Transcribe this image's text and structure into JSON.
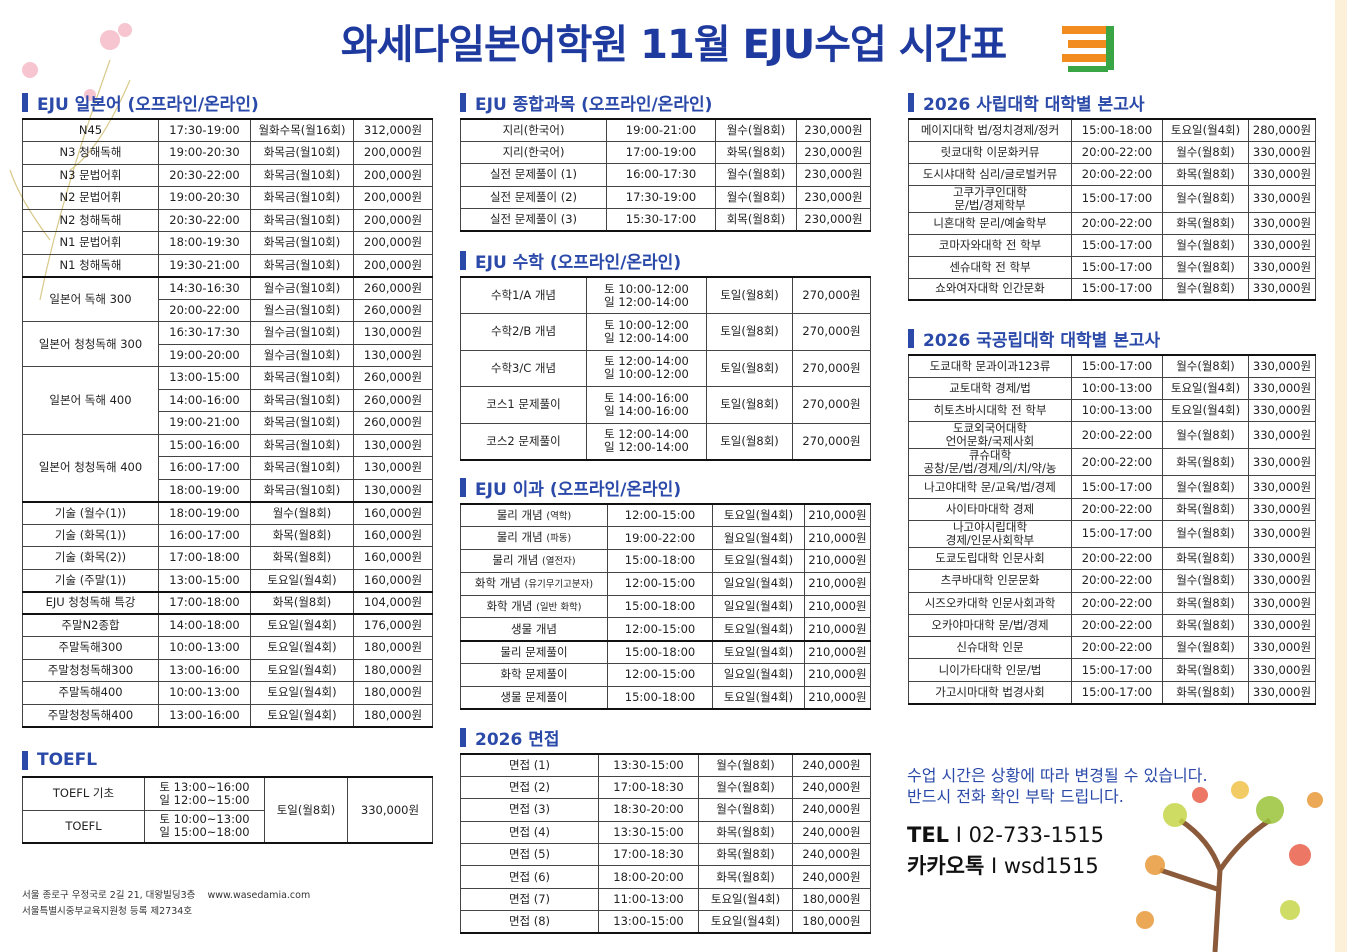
{
  "title": "와세다일본어학원 11월 EJU수업 시간표",
  "colors": {
    "brand_blue": "#2a49a8",
    "title_blue": "#1f3a9e",
    "logo_orange": "#f28c1e",
    "logo_green": "#3aa544"
  },
  "left": {
    "japanese": {
      "heading": "EJU 일본어 (오프라인/온라인)",
      "blocks": [
        [
          {
            "name": "N45",
            "slots": [
              {
                "time": "17:30-19:00",
                "days": "월화수목(월16회)",
                "price": "312,000원"
              }
            ]
          },
          {
            "name": "N3 청해독해",
            "slots": [
              {
                "time": "19:00-20:30",
                "days": "화목금(월10회)",
                "price": "200,000원"
              }
            ]
          },
          {
            "name": "N3 문법어휘",
            "slots": [
              {
                "time": "20:30-22:00",
                "days": "화목금(월10회)",
                "price": "200,000원"
              }
            ]
          },
          {
            "name": "N2 문법어휘",
            "slots": [
              {
                "time": "19:00-20:30",
                "days": "화목금(월10회)",
                "price": "200,000원"
              }
            ]
          },
          {
            "name": "N2 청해독해",
            "slots": [
              {
                "time": "20:30-22:00",
                "days": "화목금(월10회)",
                "price": "200,000원"
              }
            ]
          },
          {
            "name": "N1 문법어휘",
            "slots": [
              {
                "time": "18:00-19:30",
                "days": "화목금(월10회)",
                "price": "200,000원"
              }
            ]
          },
          {
            "name": "N1 청해독해",
            "slots": [
              {
                "time": "19:30-21:00",
                "days": "화목금(월10회)",
                "price": "200,000원"
              }
            ]
          }
        ],
        [
          {
            "name": "일본어 독해 300",
            "slots": [
              {
                "time": "14:30-16:30",
                "days": "월수금(월10회)",
                "price": "260,000원"
              },
              {
                "time": "20:00-22:00",
                "days": "월스금(월10회)",
                "price": "260,000원"
              }
            ]
          },
          {
            "name": "일본어 청청독해 300",
            "slots": [
              {
                "time": "16:30-17:30",
                "days": "월수금(월10회)",
                "price": "130,000원"
              },
              {
                "time": "19:00-20:00",
                "days": "월수금(월10회)",
                "price": "130,000원"
              }
            ]
          },
          {
            "name": "일본어 독해 400",
            "slots": [
              {
                "time": "13:00-15:00",
                "days": "화목금(월10회)",
                "price": "260,000원"
              },
              {
                "time": "14:00-16:00",
                "days": "화목금(월10회)",
                "price": "260,000원"
              },
              {
                "time": "19:00-21:00",
                "days": "화목금(월10회)",
                "price": "260,000원"
              }
            ]
          },
          {
            "name": "일본어 청청독해 400",
            "slots": [
              {
                "time": "15:00-16:00",
                "days": "화목금(월10회)",
                "price": "130,000원"
              },
              {
                "time": "16:00-17:00",
                "days": "화목금(월10회)",
                "price": "130,000원"
              },
              {
                "time": "18:00-19:00",
                "days": "화목금(월10회)",
                "price": "130,000원"
              }
            ]
          }
        ],
        [
          {
            "name": "기술 (월수(1))",
            "slots": [
              {
                "time": "18:00-19:00",
                "days": "월수(월8회)",
                "price": "160,000원"
              }
            ]
          },
          {
            "name": "기술 (화목(1))",
            "slots": [
              {
                "time": "16:00-17:00",
                "days": "화목(월8회)",
                "price": "160,000원"
              }
            ]
          },
          {
            "name": "기술 (화목(2))",
            "slots": [
              {
                "time": "17:00-18:00",
                "days": "화목(월8회)",
                "price": "160,000원"
              }
            ]
          },
          {
            "name": "기술 (주말(1))",
            "slots": [
              {
                "time": "13:00-15:00",
                "days": "토요일(월4회)",
                "price": "160,000원"
              }
            ]
          }
        ],
        [
          {
            "name": "EJU 청청독해 특강",
            "slots": [
              {
                "time": "17:00-18:00",
                "days": "화목(월8회)",
                "price": "104,000원"
              }
            ]
          }
        ],
        [
          {
            "name": "주말N2종합",
            "slots": [
              {
                "time": "14:00-18:00",
                "days": "토요일(월4회)",
                "price": "176,000원"
              }
            ]
          },
          {
            "name": "주말독해300",
            "slots": [
              {
                "time": "10:00-13:00",
                "days": "토요일(월4회)",
                "price": "180,000원"
              }
            ]
          },
          {
            "name": "주말청청독해300",
            "slots": [
              {
                "time": "13:00-16:00",
                "days": "토요일(월4회)",
                "price": "180,000원"
              }
            ]
          },
          {
            "name": "주말독해400",
            "slots": [
              {
                "time": "10:00-13:00",
                "days": "토요일(월4회)",
                "price": "180,000원"
              }
            ]
          },
          {
            "name": "주말청청독해400",
            "slots": [
              {
                "time": "13:00-16:00",
                "days": "토요일(월4회)",
                "price": "180,000원"
              }
            ]
          }
        ]
      ]
    },
    "toefl": {
      "heading": "TOEFL",
      "rows": [
        {
          "name": "TOEFL 기초",
          "time": "토 13:00~16:00\n일 12:00~15:00"
        },
        {
          "name": "TOEFL",
          "time": "토 10:00~13:00\n일 15:00~18:00"
        }
      ],
      "days": "토일(월8회)",
      "price": "330,000원"
    },
    "footer": {
      "address": "서울 종로구 우정국로 2길 21, 대왕빌딩3층",
      "website": "www.wasedamia.com",
      "registration": "서울특별시중부교육지원청 등록 제2734호"
    }
  },
  "middle": {
    "general": {
      "heading": "EJU 종합과목 (오프라인/온라인)",
      "blocks": [
        [
          {
            "name": "지리(한국어)",
            "slots": [
              {
                "time": "19:00-21:00",
                "days": "월수(월8회)",
                "price": "230,000원"
              }
            ]
          },
          {
            "name": "지리(한국어)",
            "slots": [
              {
                "time": "17:00-19:00",
                "days": "화목(월8회)",
                "price": "230,000원"
              }
            ]
          },
          {
            "name": "실전 문제풀이 (1)",
            "slots": [
              {
                "time": "16:00-17:30",
                "days": "월수(월8회)",
                "price": "230,000원"
              }
            ]
          },
          {
            "name": "실전 문제풀이 (2)",
            "slots": [
              {
                "time": "17:30-19:00",
                "days": "월수(월8회)",
                "price": "230,000원"
              }
            ]
          },
          {
            "name": "실전 문제풀이 (3)",
            "slots": [
              {
                "time": "15:30-17:00",
                "days": "회목(월8회)",
                "price": "230,000원"
              }
            ]
          }
        ]
      ]
    },
    "math": {
      "heading": "EJU 수학 (오프라인/온라인)",
      "blocks": [
        [
          {
            "name": "수학1/A 개념",
            "slots": [
              {
                "time": "토 10:00-12:00\n일 12:00-14:00",
                "days": "토일(월8회)",
                "price": "270,000원"
              }
            ]
          },
          {
            "name": "수학2/B 개념",
            "slots": [
              {
                "time": "토 10:00-12:00\n일 12:00-14:00",
                "days": "토일(월8회)",
                "price": "270,000원"
              }
            ]
          },
          {
            "name": "수학3/C 개념",
            "slots": [
              {
                "time": "토 12:00-14:00\n일 10:00-12:00",
                "days": "토일(월8회)",
                "price": "270,000원"
              }
            ]
          },
          {
            "name": "코스1 문제풀이",
            "slots": [
              {
                "time": "토 14:00-16:00\n일 14:00-16:00",
                "days": "토일(월8회)",
                "price": "270,000원"
              }
            ]
          },
          {
            "name": "코스2 문제풀이",
            "slots": [
              {
                "time": "토 12:00-14:00\n일 12:00-14:00",
                "days": "토일(월8회)",
                "price": "270,000원"
              }
            ]
          }
        ]
      ]
    },
    "science": {
      "heading": "EJU 이과 (오프라인/온라인)",
      "blocks": [
        [
          {
            "name": "물리 개념",
            "sub": "(역학)",
            "slots": [
              {
                "time": "12:00-15:00",
                "days": "토요일(월4회)",
                "price": "210,000원"
              }
            ]
          },
          {
            "name": "물리 개념",
            "sub": "(파동)",
            "slots": [
              {
                "time": "19:00-22:00",
                "days": "월요일(월4회)",
                "price": "210,000원"
              }
            ]
          },
          {
            "name": "물리 개념",
            "sub": "(열전자)",
            "slots": [
              {
                "time": "15:00-18:00",
                "days": "토요일(월4회)",
                "price": "210,000원"
              }
            ]
          },
          {
            "name": "화학 개념",
            "sub": "(유기무기고분자)",
            "slots": [
              {
                "time": "12:00-15:00",
                "days": "일요일(월4회)",
                "price": "210,000원"
              }
            ]
          },
          {
            "name": "화학 개념",
            "sub": "(일반 화학)",
            "slots": [
              {
                "time": "15:00-18:00",
                "days": "일요일(월4회)",
                "price": "210,000원"
              }
            ]
          },
          {
            "name": "생물 개념",
            "slots": [
              {
                "time": "12:00-15:00",
                "days": "토요일(월4회)",
                "price": "210,000원"
              }
            ]
          }
        ],
        [
          {
            "name": "물리 문제풀이",
            "slots": [
              {
                "time": "15:00-18:00",
                "days": "토요일(월4회)",
                "price": "210,000원"
              }
            ]
          },
          {
            "name": "화학 문제풀이",
            "slots": [
              {
                "time": "12:00-15:00",
                "days": "일요일(월4회)",
                "price": "210,000원"
              }
            ]
          },
          {
            "name": "생물 문제풀이",
            "slots": [
              {
                "time": "15:00-18:00",
                "days": "토요일(월4회)",
                "price": "210,000원"
              }
            ]
          }
        ]
      ]
    },
    "interview": {
      "heading": "2026 면접",
      "blocks": [
        [
          {
            "name": "면접 (1)",
            "slots": [
              {
                "time": "13:30-15:00",
                "days": "월수(월8회)",
                "price": "240,000원"
              }
            ]
          },
          {
            "name": "면접 (2)",
            "slots": [
              {
                "time": "17:00-18:30",
                "days": "월수(월8회)",
                "price": "240,000원"
              }
            ]
          },
          {
            "name": "면접 (3)",
            "slots": [
              {
                "time": "18:30-20:00",
                "days": "월수(월8회)",
                "price": "240,000원"
              }
            ]
          },
          {
            "name": "면접 (4)",
            "slots": [
              {
                "time": "13:30-15:00",
                "days": "화목(월8회)",
                "price": "240,000원"
              }
            ]
          },
          {
            "name": "면접 (5)",
            "slots": [
              {
                "time": "17:00-18:30",
                "days": "화목(월8회)",
                "price": "240,000원"
              }
            ]
          },
          {
            "name": "면접 (6)",
            "slots": [
              {
                "time": "18:00-20:00",
                "days": "화목(월8회)",
                "price": "240,000원"
              }
            ]
          },
          {
            "name": "면접 (7)",
            "slots": [
              {
                "time": "11:00-13:00",
                "days": "토요일(월4회)",
                "price": "180,000원"
              }
            ]
          },
          {
            "name": "면접 (8)",
            "slots": [
              {
                "time": "13:00-15:00",
                "days": "토요일(월4회)",
                "price": "180,000원"
              }
            ]
          }
        ]
      ]
    }
  },
  "right": {
    "private": {
      "heading": "2026 사립대학 대학별 본고사",
      "blocks": [
        [
          {
            "name": "메이지대학 법/정치경제/정커",
            "slots": [
              {
                "time": "15:00-18:00",
                "days": "토요일(월4회)",
                "price": "280,000원"
              }
            ]
          },
          {
            "name": "릿쿄대학 이문화커뮤",
            "slots": [
              {
                "time": "20:00-22:00",
                "days": "월수(월8회)",
                "price": "330,000원"
              }
            ]
          },
          {
            "name": "도시샤대학 심리/글로벌커뮤",
            "slots": [
              {
                "time": "20:00-22:00",
                "days": "화목(월8회)",
                "price": "330,000원"
              }
            ]
          },
          {
            "name": "고쿠가쿠인대학\n문/법/경제학부",
            "slots": [
              {
                "time": "15:00-17:00",
                "days": "월수(월8회)",
                "price": "330,000원"
              }
            ]
          },
          {
            "name": "니혼대학 문리/예술학부",
            "slots": [
              {
                "time": "20:00-22:00",
                "days": "화목(월8회)",
                "price": "330,000원"
              }
            ]
          },
          {
            "name": "코마자와대학 전 학부",
            "slots": [
              {
                "time": "15:00-17:00",
                "days": "월수(월8회)",
                "price": "330,000원"
              }
            ]
          },
          {
            "name": "센슈대학 전 학부",
            "slots": [
              {
                "time": "15:00-17:00",
                "days": "월수(월8회)",
                "price": "330,000원"
              }
            ]
          },
          {
            "name": "쇼와여자대학 인간문화",
            "slots": [
              {
                "time": "15:00-17:00",
                "days": "월수(월8회)",
                "price": "330,000원"
              }
            ]
          }
        ]
      ]
    },
    "national": {
      "heading": "2026 국공립대학 대학별 본고사",
      "blocks": [
        [
          {
            "name": "도쿄대학 문과이과123류",
            "slots": [
              {
                "time": "15:00-17:00",
                "days": "월수(월8회)",
                "price": "330,000원"
              }
            ]
          },
          {
            "name": "교토대학 경제/법",
            "slots": [
              {
                "time": "10:00-13:00",
                "days": "토요일(월4회)",
                "price": "330,000원"
              }
            ]
          },
          {
            "name": "히토츠바시대학 전 학부",
            "slots": [
              {
                "time": "10:00-13:00",
                "days": "토요일(월4회)",
                "price": "330,000원"
              }
            ]
          },
          {
            "name": "도쿄외국어대학\n언어문화/국제사회",
            "slots": [
              {
                "time": "20:00-22:00",
                "days": "월수(월8회)",
                "price": "330,000원"
              }
            ]
          },
          {
            "name": "큐슈대학\n공창/문/법/경제/의/치/약/농",
            "slots": [
              {
                "time": "20:00-22:00",
                "days": "화목(월8회)",
                "price": "330,000원"
              }
            ]
          },
          {
            "name": "나고야대학 문/교육/법/경제",
            "slots": [
              {
                "time": "15:00-17:00",
                "days": "월수(월8회)",
                "price": "330,000원"
              }
            ]
          },
          {
            "name": "사이타마대학 경제",
            "slots": [
              {
                "time": "20:00-22:00",
                "days": "화목(월8회)",
                "price": "330,000원"
              }
            ]
          },
          {
            "name": "나고야시립대학\n경제/인문사회학부",
            "slots": [
              {
                "time": "15:00-17:00",
                "days": "월수(월8회)",
                "price": "330,000원"
              }
            ]
          },
          {
            "name": "도쿄도립대학 인문사회",
            "slots": [
              {
                "time": "20:00-22:00",
                "days": "화목(월8회)",
                "price": "330,000원"
              }
            ]
          },
          {
            "name": "츠쿠바대학 인문문화",
            "slots": [
              {
                "time": "20:00-22:00",
                "days": "월수(월8회)",
                "price": "330,000원"
              }
            ]
          },
          {
            "name": "시즈오카대학 인문사회과학",
            "slots": [
              {
                "time": "20:00-22:00",
                "days": "화목(월8회)",
                "price": "330,000원"
              }
            ]
          },
          {
            "name": "오카야마대학 문/법/경제",
            "slots": [
              {
                "time": "20:00-22:00",
                "days": "화목(월8회)",
                "price": "330,000원"
              }
            ]
          },
          {
            "name": "신슈대학 인문",
            "slots": [
              {
                "time": "20:00-22:00",
                "days": "월수(월8회)",
                "price": "330,000원"
              }
            ]
          },
          {
            "name": "니이가타대학 인문/법",
            "slots": [
              {
                "time": "15:00-17:00",
                "days": "화목(월8회)",
                "price": "330,000원"
              }
            ]
          },
          {
            "name": "가고시마대학 법경사회",
            "slots": [
              {
                "time": "15:00-17:00",
                "days": "화목(월8회)",
                "price": "330,000원"
              }
            ]
          }
        ]
      ]
    },
    "notice": {
      "line1": "수업 시간은 상황에 따라 변경될 수 있습니다.",
      "line2": "반드시 전화 확인 부탁 드립니다."
    },
    "contact": {
      "tel_label": "TEL",
      "tel_value": "02-733-1515",
      "kakao_label": "카카오톡",
      "kakao_value": "wsd1515",
      "separator": "I"
    }
  }
}
